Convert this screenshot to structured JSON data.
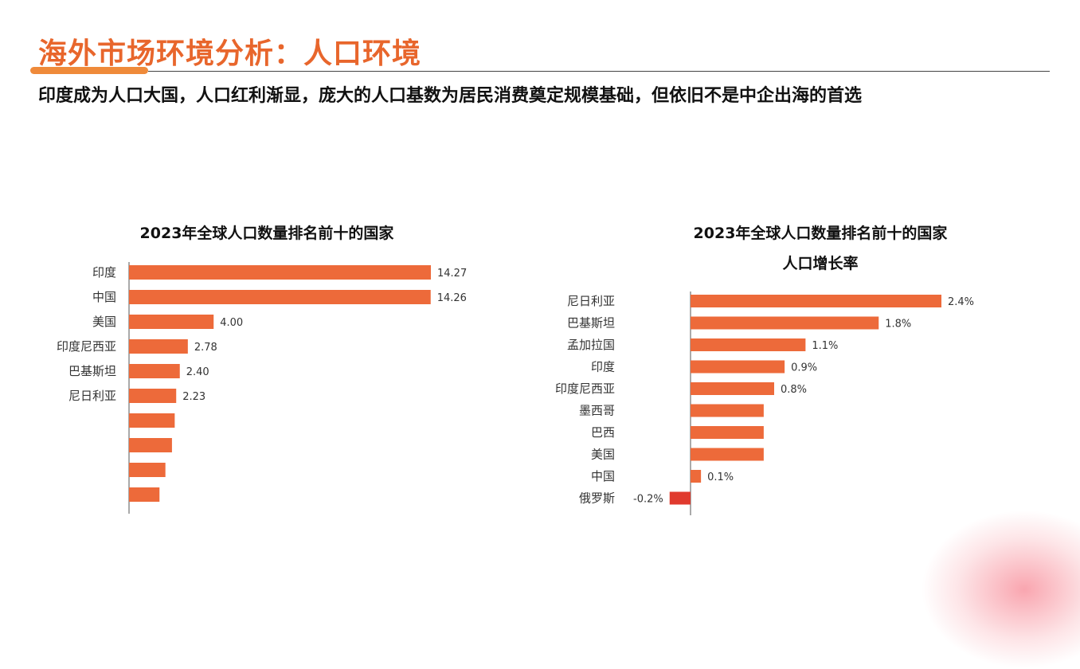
{
  "header": {
    "title": "海外市场环境分析：人口环境",
    "subtitle": "印度成为人口大国，人口红利渐显，庞大的人口基数为居民消费奠定规模基础，但依旧不是中企出海的首选"
  },
  "colors": {
    "accent": "#e8662c",
    "bar": "#ed6a3a",
    "negative_bar": "#e03a2e"
  },
  "chart_data": [
    {
      "type": "bar",
      "orientation": "horizontal",
      "title": "2023年全球人口数量排名前十的国家",
      "categories": [
        "印度",
        "中国",
        "美国",
        "印度尼西亚",
        "巴基斯坦",
        "尼日利亚",
        "",
        "",
        "",
        ""
      ],
      "values": [
        14.27,
        14.26,
        4.0,
        2.78,
        2.4,
        2.23,
        2.16,
        2.03,
        1.72,
        1.44
      ],
      "value_labels": [
        "14.27",
        "14.26",
        "4.00",
        "2.78",
        "2.40",
        "2.23",
        "",
        "",
        "",
        ""
      ],
      "xlim": [
        0,
        14.27
      ],
      "grid": false
    },
    {
      "type": "bar",
      "orientation": "horizontal",
      "title": "2023年全球人口数量排名前十的国家",
      "subtitle": "人口增长率",
      "categories": [
        "尼日利亚",
        "巴基斯坦",
        "孟加拉国",
        "印度",
        "印度尼西亚",
        "墨西哥",
        "巴西",
        "美国",
        "中国",
        "俄罗斯"
      ],
      "values": [
        2.4,
        1.8,
        1.1,
        0.9,
        0.8,
        0.7,
        0.7,
        0.7,
        0.1,
        -0.2
      ],
      "value_labels": [
        "2.4%",
        "1.8%",
        "1.1%",
        "0.9%",
        "0.8%",
        "",
        "",
        "",
        "0.1%",
        "-0.2%"
      ],
      "xlim": [
        -0.2,
        2.4
      ],
      "grid": false
    }
  ]
}
